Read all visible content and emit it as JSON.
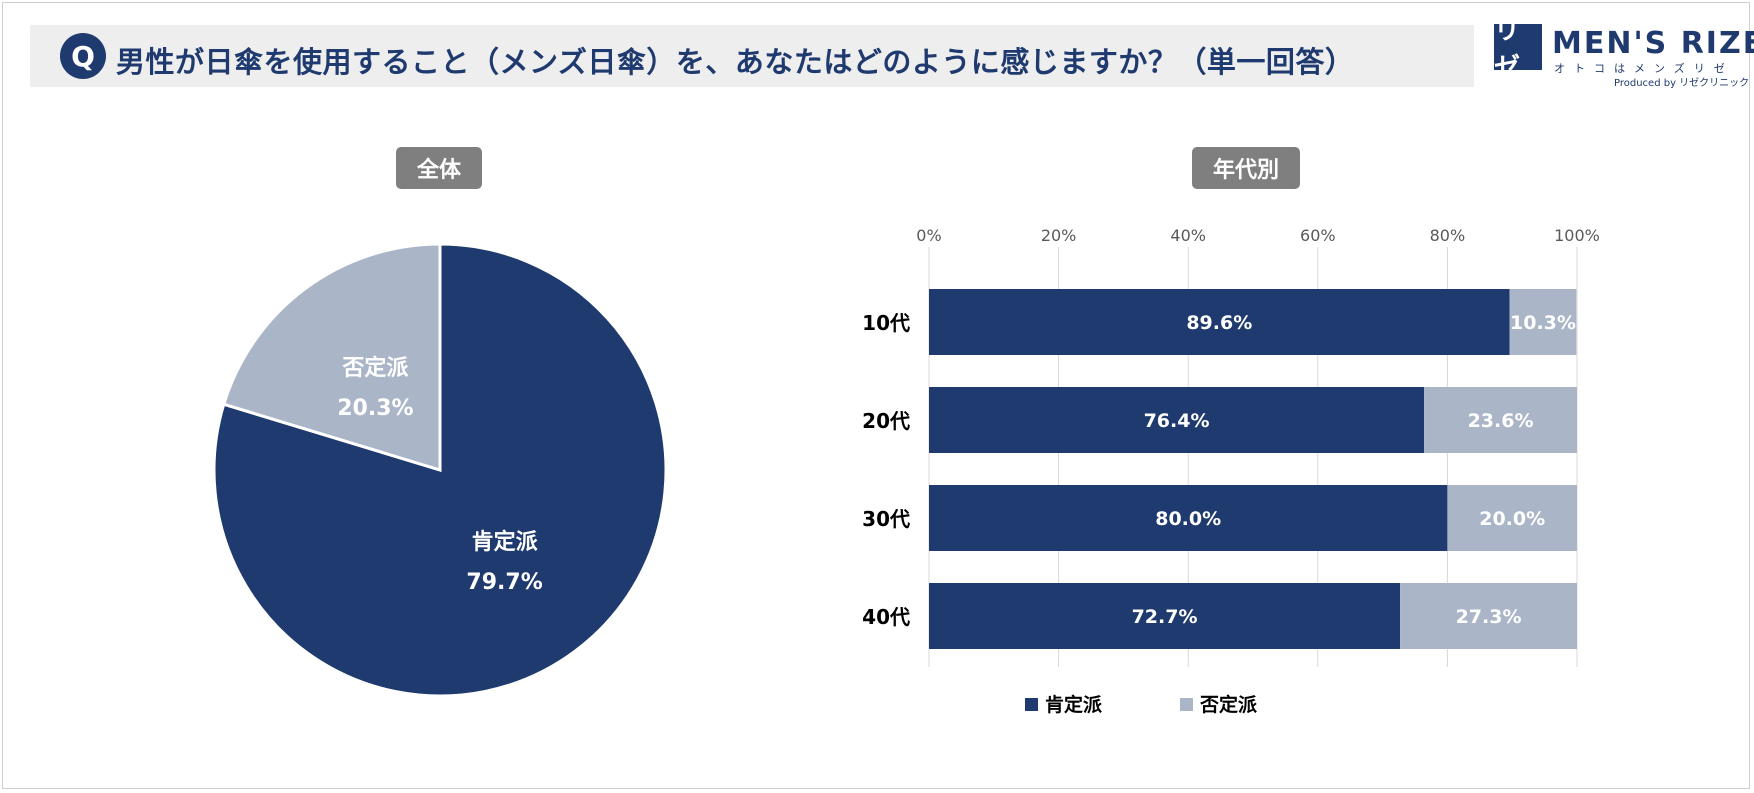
{
  "question": {
    "badge": "Q",
    "text": "男性が日傘を使用すること（メンズ日傘）を、あなたはどのように感じますか？（単一回答）"
  },
  "logo": {
    "mark": "リゼ",
    "name": "MEN'S RIZE",
    "tagline": "オトコはメンズリゼ",
    "credit": "Produced by リゼクリニック"
  },
  "colors": {
    "positive": "#1f3a6e",
    "negative": "#aab5c8"
  },
  "chart_data": [
    {
      "type": "pie",
      "title": "全体",
      "slices": [
        {
          "label": "肯定派",
          "value": 79.7,
          "display": "79.7%"
        },
        {
          "label": "否定派",
          "value": 20.3,
          "display": "20.3%"
        }
      ]
    },
    {
      "type": "bar",
      "orientation": "horizontal",
      "stacked": true,
      "title": "年代別",
      "categories": [
        "10代",
        "20代",
        "30代",
        "40代"
      ],
      "series": [
        {
          "name": "肯定派",
          "values": [
            89.6,
            76.4,
            80.0,
            72.7
          ],
          "labels": [
            "89.6%",
            "76.4%",
            "80.0%",
            "72.7%"
          ]
        },
        {
          "name": "否定派",
          "values": [
            10.3,
            23.6,
            20.0,
            27.3
          ],
          "labels": [
            "10.3%",
            "23.6%",
            "20.0%",
            "27.3%"
          ]
        }
      ],
      "xlim": [
        0,
        100
      ],
      "xticks": [
        "0%",
        "20%",
        "40%",
        "60%",
        "80%",
        "100%"
      ],
      "legend": "bottom",
      "grid": true
    }
  ]
}
